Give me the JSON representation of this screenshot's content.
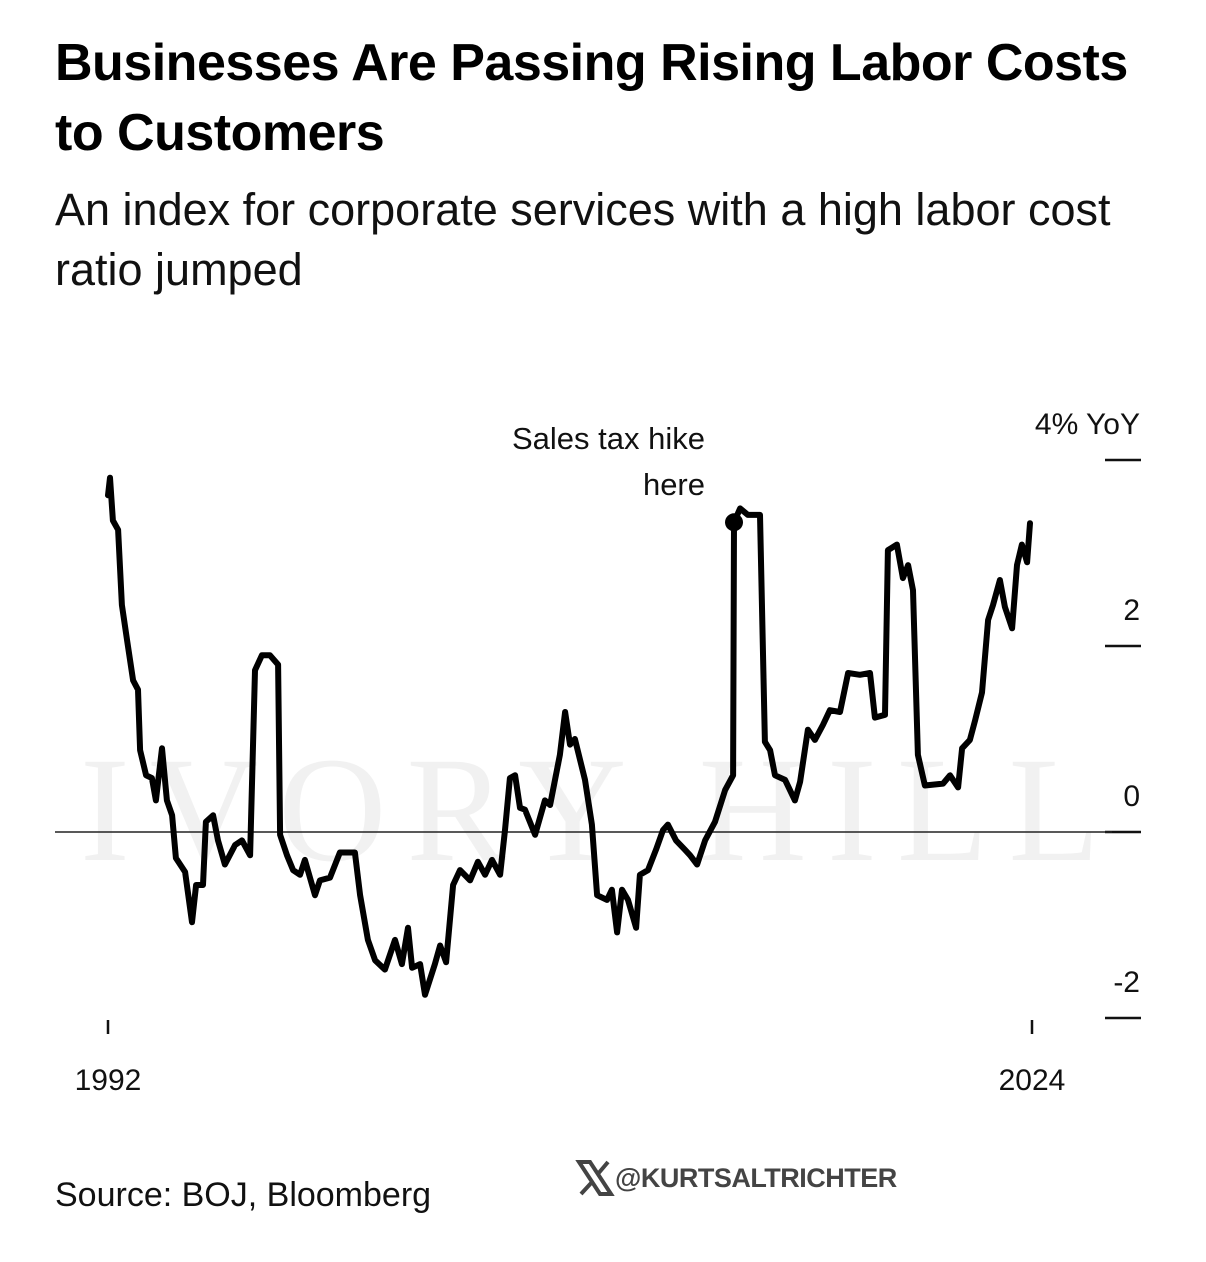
{
  "chart_data": {
    "type": "line",
    "title": "Businesses Are Passing Rising Labor Costs to Customers",
    "subtitle": "An index for corporate services with a high labor cost ratio jumped",
    "source": "Source: BOJ, Bloomberg",
    "credit": "@KURTSALTRICHTER",
    "watermark": "IVORY HILL",
    "color": "#000000",
    "xlim": [
      1992,
      2024
    ],
    "xticks": [
      1992,
      2024
    ],
    "ylim": [
      -2,
      4
    ],
    "yticks": [
      {
        "value": 4,
        "label": "4% YoY"
      },
      2,
      0,
      -2
    ],
    "annotation": {
      "text": "Sales tax hike here",
      "x": 2013.68,
      "y": 3.33
    },
    "x": [
      1992.0,
      1992.07,
      1992.17,
      1992.35,
      1992.48,
      1992.66,
      1992.87,
      1993.04,
      1993.11,
      1993.32,
      1993.52,
      1993.66,
      1993.87,
      1994.04,
      1994.22,
      1994.35,
      1994.67,
      1994.91,
      1995.05,
      1995.29,
      1995.39,
      1995.64,
      1995.81,
      1996.05,
      1996.4,
      1996.64,
      1996.92,
      1997.09,
      1997.33,
      1997.61,
      1997.89,
      1997.96,
      1998.2,
      1998.41,
      1998.65,
      1998.82,
      1999.17,
      1999.34,
      1999.69,
      2000.03,
      2000.55,
      2000.73,
      2001.0,
      2001.25,
      2001.59,
      2001.94,
      2002.18,
      2002.39,
      2002.53,
      2002.81,
      2002.98,
      2003.32,
      2003.5,
      2003.71,
      2003.95,
      2004.19,
      2004.54,
      2004.81,
      2005.06,
      2005.3,
      2005.58,
      2005.75,
      2005.92,
      2006.1,
      2006.27,
      2006.44,
      2006.79,
      2007.13,
      2007.31,
      2007.65,
      2007.83,
      2008.0,
      2008.17,
      2008.52,
      2008.76,
      2008.94,
      2009.28,
      2009.45,
      2009.63,
      2009.8,
      2010.01,
      2010.29,
      2010.42,
      2010.7,
      2010.98,
      2011.22,
      2011.39,
      2011.67,
      2011.98,
      2012.16,
      2012.4,
      2012.68,
      2013.02,
      2013.37,
      2013.65,
      2013.68,
      2013.89,
      2014.16,
      2014.58,
      2014.75,
      2014.93,
      2015.1,
      2015.45,
      2015.79,
      2015.97,
      2016.24,
      2016.48,
      2016.76,
      2017.0,
      2017.35,
      2017.63,
      2018.04,
      2018.39,
      2018.56,
      2018.91,
      2019.01,
      2019.32,
      2019.53,
      2019.71,
      2019.88,
      2020.05,
      2020.29,
      2020.92,
      2021.16,
      2021.44,
      2021.58,
      2021.85,
      2022.03,
      2022.27,
      2022.48,
      2022.65,
      2022.89,
      2023.06,
      2023.31,
      2023.48,
      2023.65,
      2023.83,
      2023.93
    ],
    "values": [
      3.62,
      3.81,
      3.35,
      3.25,
      2.44,
      2.06,
      1.63,
      1.53,
      0.88,
      0.61,
      0.58,
      0.34,
      0.9,
      0.34,
      0.18,
      -0.28,
      -0.43,
      -0.97,
      -0.57,
      -0.57,
      0.11,
      0.18,
      -0.09,
      -0.35,
      -0.14,
      -0.09,
      -0.25,
      1.74,
      1.9,
      1.9,
      1.8,
      -0.03,
      -0.25,
      -0.41,
      -0.46,
      -0.3,
      -0.68,
      -0.52,
      -0.49,
      -0.22,
      -0.22,
      -0.68,
      -1.16,
      -1.38,
      -1.48,
      -1.16,
      -1.42,
      -1.03,
      -1.46,
      -1.42,
      -1.75,
      -1.42,
      -1.22,
      -1.4,
      -0.57,
      -0.41,
      -0.52,
      -0.32,
      -0.46,
      -0.3,
      -0.46,
      0.02,
      0.58,
      0.61,
      0.26,
      0.24,
      -0.03,
      0.34,
      0.29,
      0.83,
      1.29,
      0.94,
      1.0,
      0.56,
      0.08,
      -0.68,
      -0.73,
      -0.62,
      -1.08,
      -0.62,
      -0.73,
      -1.03,
      -0.46,
      -0.41,
      -0.19,
      0.02,
      0.08,
      -0.09,
      -0.19,
      -0.25,
      -0.35,
      -0.09,
      0.11,
      0.45,
      0.61,
      3.33,
      3.48,
      3.41,
      3.41,
      0.97,
      0.88,
      0.61,
      0.56,
      0.34,
      0.54,
      1.1,
      0.99,
      1.15,
      1.31,
      1.29,
      1.71,
      1.69,
      1.71,
      1.23,
      1.26,
      3.03,
      3.09,
      2.73,
      2.87,
      2.6,
      0.83,
      0.5,
      0.52,
      0.61,
      0.48,
      0.9,
      0.99,
      1.2,
      1.5,
      2.28,
      2.44,
      2.71,
      2.42,
      2.19,
      2.87,
      3.09,
      2.9,
      3.32
    ]
  }
}
